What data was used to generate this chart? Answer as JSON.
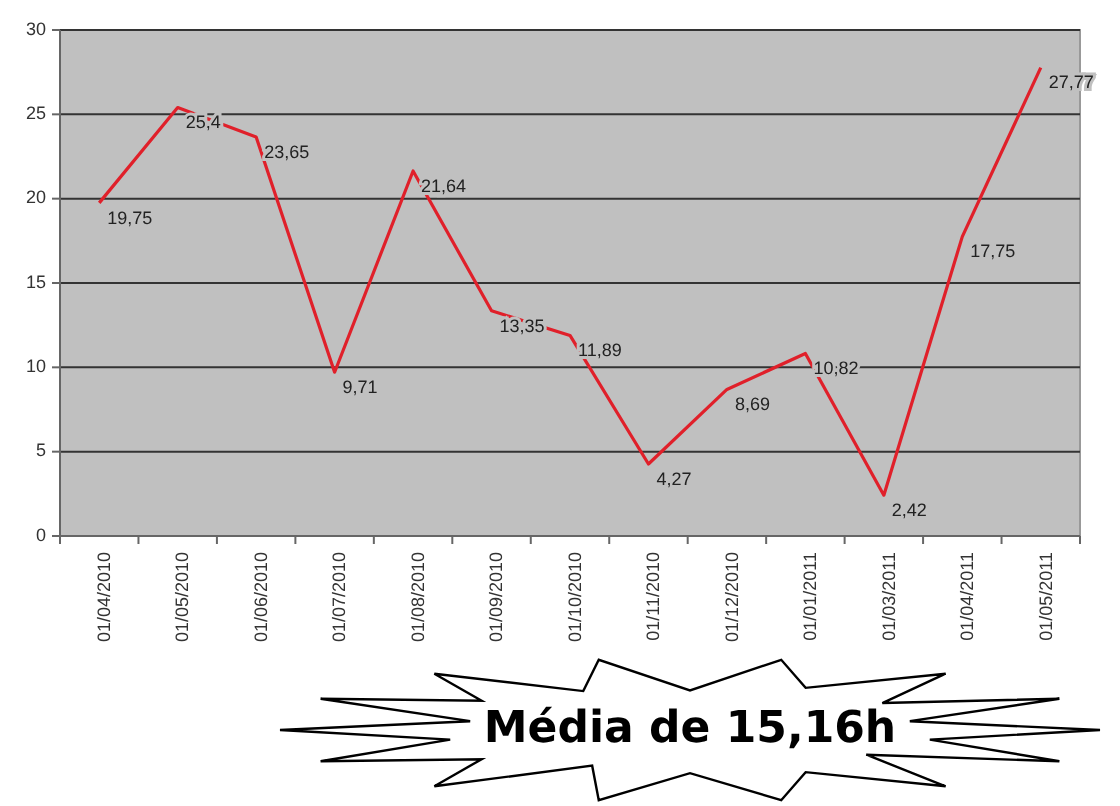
{
  "chart_data": {
    "type": "line",
    "categories": [
      "01/04/2010",
      "01/05/2010",
      "01/06/2010",
      "01/07/2010",
      "01/08/2010",
      "01/09/2010",
      "01/10/2010",
      "01/11/2010",
      "01/12/2010",
      "01/01/2011",
      "01/03/2011",
      "01/04/2011",
      "01/05/2011"
    ],
    "series": [
      {
        "color": "#e0202a",
        "values": [
          19.75,
          25.4,
          23.65,
          9.71,
          21.64,
          13.35,
          11.89,
          4.27,
          8.69,
          10.82,
          2.42,
          17.75,
          27.77
        ],
        "value_labels": [
          "19,75",
          "25,4",
          "23,65",
          "9,71",
          "21,64",
          "13,35",
          "11,89",
          "4,27",
          "8,69",
          "10,82",
          "2,42",
          "17,75",
          "27,77"
        ]
      }
    ],
    "ylim": [
      0,
      30
    ],
    "yticks": [
      0,
      5,
      10,
      15,
      20,
      25,
      30
    ],
    "grid": "y",
    "marker": "none",
    "line_style": "solid",
    "annotations": [
      "Média de 15,16h"
    ]
  }
}
